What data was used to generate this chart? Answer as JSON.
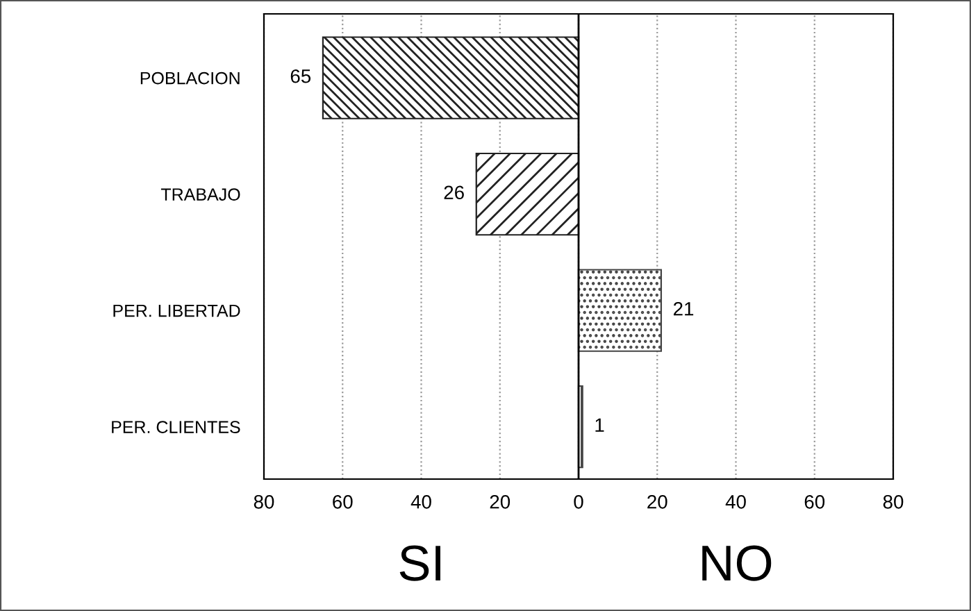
{
  "chart_data": {
    "type": "bar",
    "orientation": "horizontal",
    "categories": [
      "POBLACION",
      "TRABAJO",
      "PER. LIBERTAD",
      "PER. CLIENTES"
    ],
    "values": [
      65,
      26,
      21,
      1
    ],
    "base": [
      -65,
      -26,
      0,
      0
    ],
    "data_labels": true,
    "colors": [
      "#222222",
      "#222222",
      "#444444",
      "#444444"
    ],
    "xlim": [
      -80,
      80
    ],
    "xticks": [
      {
        "value": -80,
        "label": "80"
      },
      {
        "value": -60,
        "label": "60"
      },
      {
        "value": -40,
        "label": "40"
      },
      {
        "value": -20,
        "label": "20"
      },
      0,
      20,
      40,
      60,
      80
    ],
    "grid": "x",
    "annotations": [
      "SI",
      "NO"
    ]
  }
}
